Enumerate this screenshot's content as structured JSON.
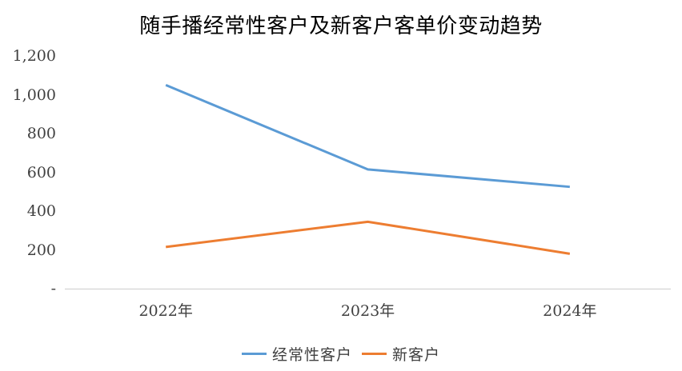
{
  "chart_data": {
    "type": "line",
    "title": "随手播经常性客户及新客户客单价变动趋势",
    "categories": [
      "2022年",
      "2023年",
      "2024年"
    ],
    "series": [
      {
        "name": "经常性客户",
        "color": "#5B9BD5",
        "values": [
          1050,
          615,
          525
        ]
      },
      {
        "name": "新客户",
        "color": "#ED7D31",
        "values": [
          215,
          345,
          180
        ]
      }
    ],
    "ylim": [
      0,
      1200
    ],
    "ytick_step": 200,
    "ytick_labels": [
      "-",
      "200",
      "400",
      "600",
      "800",
      "1,000",
      "1,200"
    ],
    "grid": false,
    "legend_position": "bottom",
    "colors": {
      "axis_line": "#d9d9d9",
      "tick_text": "#404040",
      "title_text": "#000000",
      "background": "#ffffff"
    }
  }
}
